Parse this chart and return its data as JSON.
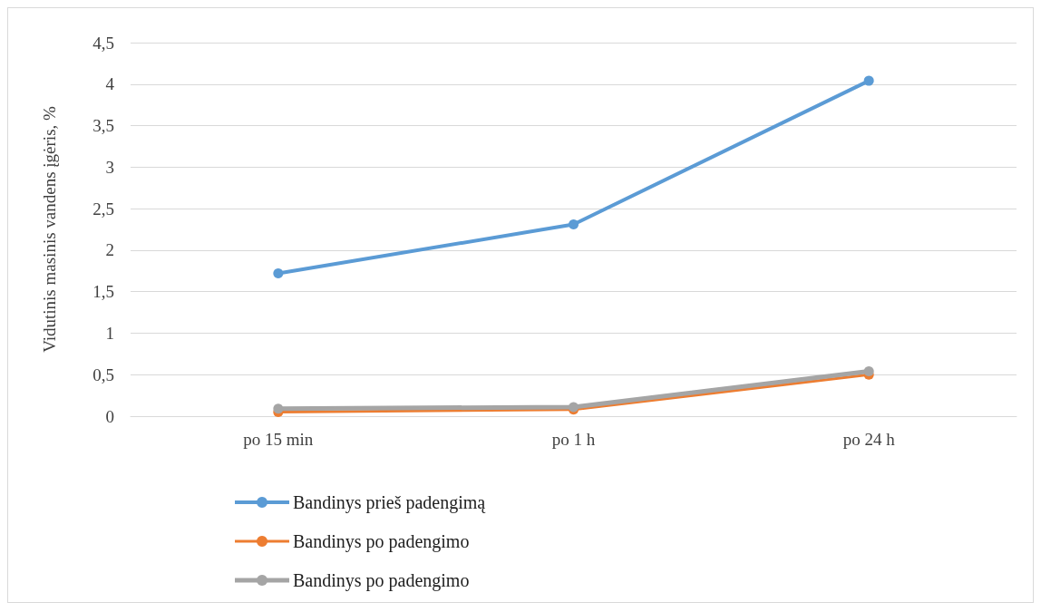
{
  "chart_data": {
    "type": "line",
    "ylabel": "Vidutinis masinis vandens įgėris, %",
    "categories": [
      "po 15 min",
      "po 1 h",
      "po 24 h"
    ],
    "series": [
      {
        "name": "Bandinys prieš padengimą",
        "color": "#5b9bd5",
        "values": [
          1.72,
          2.31,
          4.04
        ]
      },
      {
        "name": "Bandinys po padengimo",
        "color": "#ed7d31",
        "values": [
          0.05,
          0.08,
          0.5
        ]
      },
      {
        "name": "Bandinys po padengimo",
        "color": "#a5a5a5",
        "values": [
          0.09,
          0.11,
          0.54
        ]
      }
    ],
    "ylim": [
      0,
      4.5
    ],
    "yticks": [
      0,
      {
        "value": 0.5,
        "label": "0,5"
      },
      1,
      {
        "value": 1.5,
        "label": "1,5"
      },
      2,
      {
        "value": 2.5,
        "label": "2,5"
      },
      3,
      {
        "value": 3.5,
        "label": "3,5"
      },
      4,
      {
        "value": 4.5,
        "label": "4,5"
      }
    ],
    "grid": "y",
    "legend": "bottom",
    "marker": "circle",
    "line_style": "solid"
  }
}
